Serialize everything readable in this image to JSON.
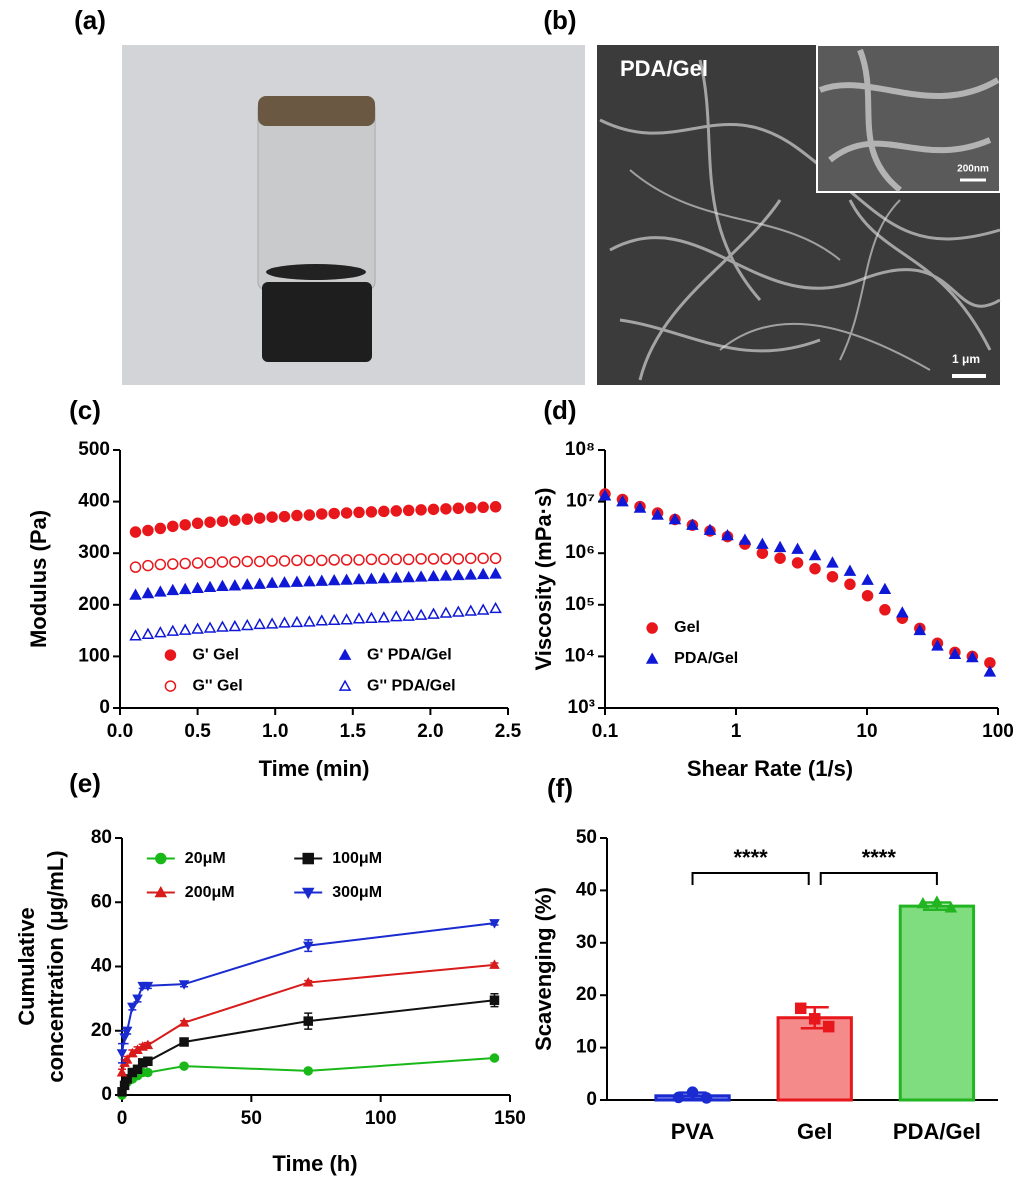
{
  "panels": {
    "a": {
      "label": "(a)"
    },
    "b": {
      "label": "(b)",
      "annotations": [
        "PDA/Gel",
        "200nm",
        "1 μm"
      ]
    }
  },
  "chart_data": [
    {
      "type": "scatter",
      "label": "(c)",
      "xlabel": "Time (min)",
      "ylabel": "Modulus (Pa)",
      "xlim": [
        0,
        2.5
      ],
      "xticks": [
        {
          "value": 0,
          "label": "0.0"
        },
        0.5,
        {
          "value": 1,
          "label": "1.0"
        },
        1.5,
        {
          "value": 2,
          "label": "2.0"
        },
        2.5
      ],
      "ylim": [
        0,
        500
      ],
      "yticks": [
        0,
        100,
        200,
        300,
        400,
        500
      ],
      "legend_loc": "lower center",
      "legend_columns": 2,
      "x": [
        0.1,
        0.18,
        0.26,
        0.34,
        0.42,
        0.5,
        0.58,
        0.66,
        0.74,
        0.82,
        0.9,
        0.98,
        1.06,
        1.14,
        1.22,
        1.3,
        1.38,
        1.46,
        1.54,
        1.62,
        1.7,
        1.78,
        1.86,
        1.94,
        2.02,
        2.1,
        2.18,
        2.26,
        2.34,
        2.42
      ],
      "series": [
        {
          "name": "G' Gel",
          "color": "#e8171c",
          "marker": "circle",
          "filled": true,
          "values": [
            341,
            344,
            348,
            352,
            355,
            358,
            360,
            362,
            364,
            366,
            368,
            370,
            371,
            373,
            374,
            376,
            377,
            378,
            379,
            380,
            381,
            382,
            383,
            384,
            385,
            386,
            387,
            388,
            389,
            390
          ]
        },
        {
          "name": "G' PDA/Gel",
          "color": "#0f18d6",
          "marker": "triangle",
          "filled": true,
          "values": [
            219,
            222,
            225,
            228,
            230,
            232,
            234,
            236,
            237,
            239,
            240,
            242,
            243,
            244,
            245,
            246,
            247,
            248,
            249,
            250,
            251,
            252,
            253,
            254,
            255,
            256,
            257,
            258,
            259,
            260
          ]
        },
        {
          "name": "G'' Gel",
          "color": "#e8171c",
          "marker": "circle",
          "filled": false,
          "values": [
            273,
            276,
            278,
            279,
            280,
            281,
            282,
            283,
            283,
            284,
            284,
            285,
            285,
            286,
            286,
            286,
            287,
            287,
            287,
            288,
            288,
            288,
            288,
            289,
            289,
            289,
            289,
            290,
            290,
            290
          ]
        },
        {
          "name": "G'' PDA/Gel",
          "color": "#0f18d6",
          "marker": "triangle",
          "filled": false,
          "values": [
            140,
            143,
            146,
            149,
            151,
            153,
            155,
            157,
            158,
            160,
            162,
            163,
            165,
            166,
            167,
            169,
            170,
            171,
            173,
            174,
            175,
            177,
            178,
            180,
            182,
            184,
            186,
            188,
            190,
            193
          ]
        }
      ]
    },
    {
      "type": "scatter",
      "label": "(d)",
      "xlabel": "Shear Rate (1/s)",
      "ylabel": "Viscosity (mPa·s)",
      "xscale": "log",
      "yscale": "log",
      "xlim": [
        0.1,
        100
      ],
      "xticks": [
        0.1,
        1,
        10,
        100
      ],
      "ylim": [
        1000,
        100000000
      ],
      "yticks": [
        {
          "value": 1000,
          "label": "10³"
        },
        {
          "value": 10000,
          "label": "10⁴"
        },
        {
          "value": 100000,
          "label": "10⁵"
        },
        {
          "value": 1000000,
          "label": "10⁶"
        },
        {
          "value": 10000000,
          "label": "10⁷"
        },
        {
          "value": 100000000,
          "label": "10⁸"
        }
      ],
      "legend_loc": "center left",
      "legend_columns": 1,
      "x": [
        0.1,
        0.136,
        0.185,
        0.252,
        0.342,
        0.465,
        0.633,
        0.861,
        1.17,
        1.59,
        2.17,
        2.95,
        4.01,
        5.45,
        7.41,
        10.1,
        13.7,
        18.6,
        25.3,
        34.5,
        46.9,
        63.7,
        86.7
      ],
      "series": [
        {
          "name": "Gel",
          "color": "#e8171c",
          "marker": "circle",
          "filled": true,
          "values": [
            14000000,
            11000000,
            8000000,
            6000000,
            4500000,
            3500000,
            2700000,
            2100000,
            1500000,
            1000000,
            800000,
            650000,
            500000,
            350000,
            250000,
            150000,
            80000,
            55000,
            35000,
            18000,
            12000,
            10000,
            7500
          ]
        },
        {
          "name": "PDA/Gel",
          "color": "#0f18d6",
          "marker": "triangle",
          "filled": true,
          "values": [
            13000000,
            10000000,
            7500000,
            5500000,
            4500000,
            3500000,
            2800000,
            2200000,
            1800000,
            1500000,
            1300000,
            1200000,
            900000,
            650000,
            450000,
            300000,
            200000,
            70000,
            32000,
            16000,
            11000,
            9500,
            5000
          ]
        }
      ]
    },
    {
      "type": "line",
      "label": "(e)",
      "xlabel": "Time (h)",
      "ylabel": [
        "Cumulative",
        "concentration (μg/mL)"
      ],
      "xlim": [
        0,
        150
      ],
      "xticks": [
        0,
        50,
        100,
        150
      ],
      "ylim": [
        0,
        80
      ],
      "yticks": [
        0,
        20,
        40,
        60,
        80
      ],
      "legend_loc": "upper left",
      "legend_columns": 2,
      "x": [
        0,
        1,
        2,
        4,
        6,
        8,
        10,
        24,
        72,
        144
      ],
      "series": [
        {
          "name": "20μM",
          "color": "#19b819",
          "marker": "circle",
          "filled": true,
          "values": [
            0,
            3,
            4,
            5,
            6,
            7,
            7,
            9,
            7.5,
            11.5
          ],
          "errors": [
            0.5,
            0.8,
            0.8,
            0.8,
            0.8,
            0.7,
            0.7,
            0.6,
            0.6,
            0.6
          ]
        },
        {
          "name": "100μM",
          "color": "#111111",
          "marker": "square",
          "filled": true,
          "values": [
            1,
            3,
            5,
            7,
            8,
            10,
            10.5,
            16.5,
            23,
            29.5
          ],
          "errors": [
            0.5,
            1,
            1.2,
            1,
            1,
            1,
            1,
            0.8,
            2.5,
            2
          ]
        },
        {
          "name": "200μM",
          "color": "#d81b1b",
          "marker": "triangle",
          "filled": true,
          "values": [
            7,
            10,
            11,
            13,
            14,
            15,
            15.5,
            22.5,
            35,
            40.5
          ],
          "errors": [
            1,
            1,
            1,
            1,
            1,
            0.8,
            0.8,
            0.6,
            0.6,
            0.6
          ]
        },
        {
          "name": "300μM",
          "color": "#1a2bd0",
          "marker": "triangle-down",
          "filled": true,
          "values": [
            13,
            18,
            20,
            27.5,
            30,
            34,
            34,
            34.5,
            46.5,
            53.5
          ],
          "errors": [
            3,
            2,
            1,
            1,
            1,
            0.8,
            0.8,
            0.8,
            1.8,
            0.6
          ]
        }
      ]
    },
    {
      "type": "bar",
      "label": "(f)",
      "ylabel": "Scavenging (%)",
      "ylim": [
        0,
        50
      ],
      "yticks": [
        0,
        10,
        20,
        30,
        40,
        50
      ],
      "categories": [
        "PVA",
        "Gel",
        "PDA/Gel"
      ],
      "values": [
        0.8,
        15.7,
        37
      ],
      "errors": [
        0.6,
        2,
        0.7
      ],
      "colors": [
        "#1a2bd0",
        "#e8171c",
        "#22b522"
      ],
      "fill_colors": [
        "#7f85f0",
        "#f48a8a",
        "#7fdc7f"
      ],
      "points": [
        [
          0.5,
          1.5,
          0.4
        ],
        [
          17.5,
          15.5,
          14
        ],
        [
          37.5,
          37.8,
          36.7
        ]
      ],
      "point_markers": [
        "circle",
        "square",
        "triangle"
      ],
      "significance": [
        "****",
        "****"
      ]
    }
  ]
}
